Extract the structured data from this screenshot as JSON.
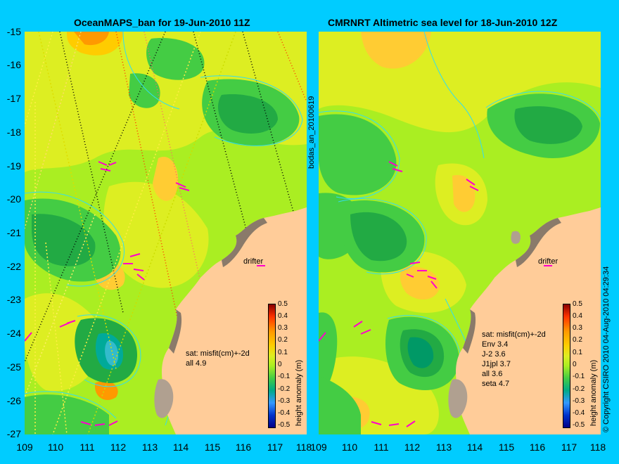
{
  "left_panel": {
    "title": "OceanMAPS_ban for 19-Jun-2010 11Z",
    "stats_header": "sat: misfit(cm)+-2d",
    "stats": [
      "all  4.9"
    ],
    "drifter_label": "drifter"
  },
  "right_panel": {
    "title": "CMRNRT Altimetric sea level  for 18-Jun-2010 12Z",
    "stats_header": "sat: misfit(cm)+-2d",
    "stats": [
      "Env    3.4",
      "J-2    3.6",
      "J1jpl  3.7",
      "all  3.6",
      "seta  4.7"
    ],
    "drifter_label": "drifter"
  },
  "side_label": "bodas_an_20100619",
  "copyright": "© Copyright CSIRO 2010   04-Aug-2010 04:29:34",
  "colorbar": {
    "label": "height anomaly (m)",
    "ticks": [
      "0.5",
      "0.4",
      "0.3",
      "0.2",
      "0.1",
      "0",
      "-0.1",
      "-0.2",
      "-0.3",
      "-0.4",
      "-0.5"
    ]
  },
  "lat_ticks": [
    "-15",
    "-16",
    "-17",
    "-18",
    "-19",
    "-20",
    "-21",
    "-22",
    "-23",
    "-24",
    "-25",
    "-26",
    "-27"
  ],
  "lon_ticks_left": [
    "109",
    "110",
    "111",
    "112",
    "113",
    "114",
    "115",
    "116",
    "117",
    "118"
  ],
  "lon_ticks_right": [
    "109",
    "110",
    "111",
    "112",
    "113",
    "114",
    "115",
    "116",
    "117",
    "118"
  ],
  "colors": {
    "background": "#00ccff",
    "land": "#ffcc99",
    "coast_grey": "#b0a090",
    "contour": "#33ddee",
    "neutral": "#aaee22",
    "arrow": "#ff00cc"
  }
}
